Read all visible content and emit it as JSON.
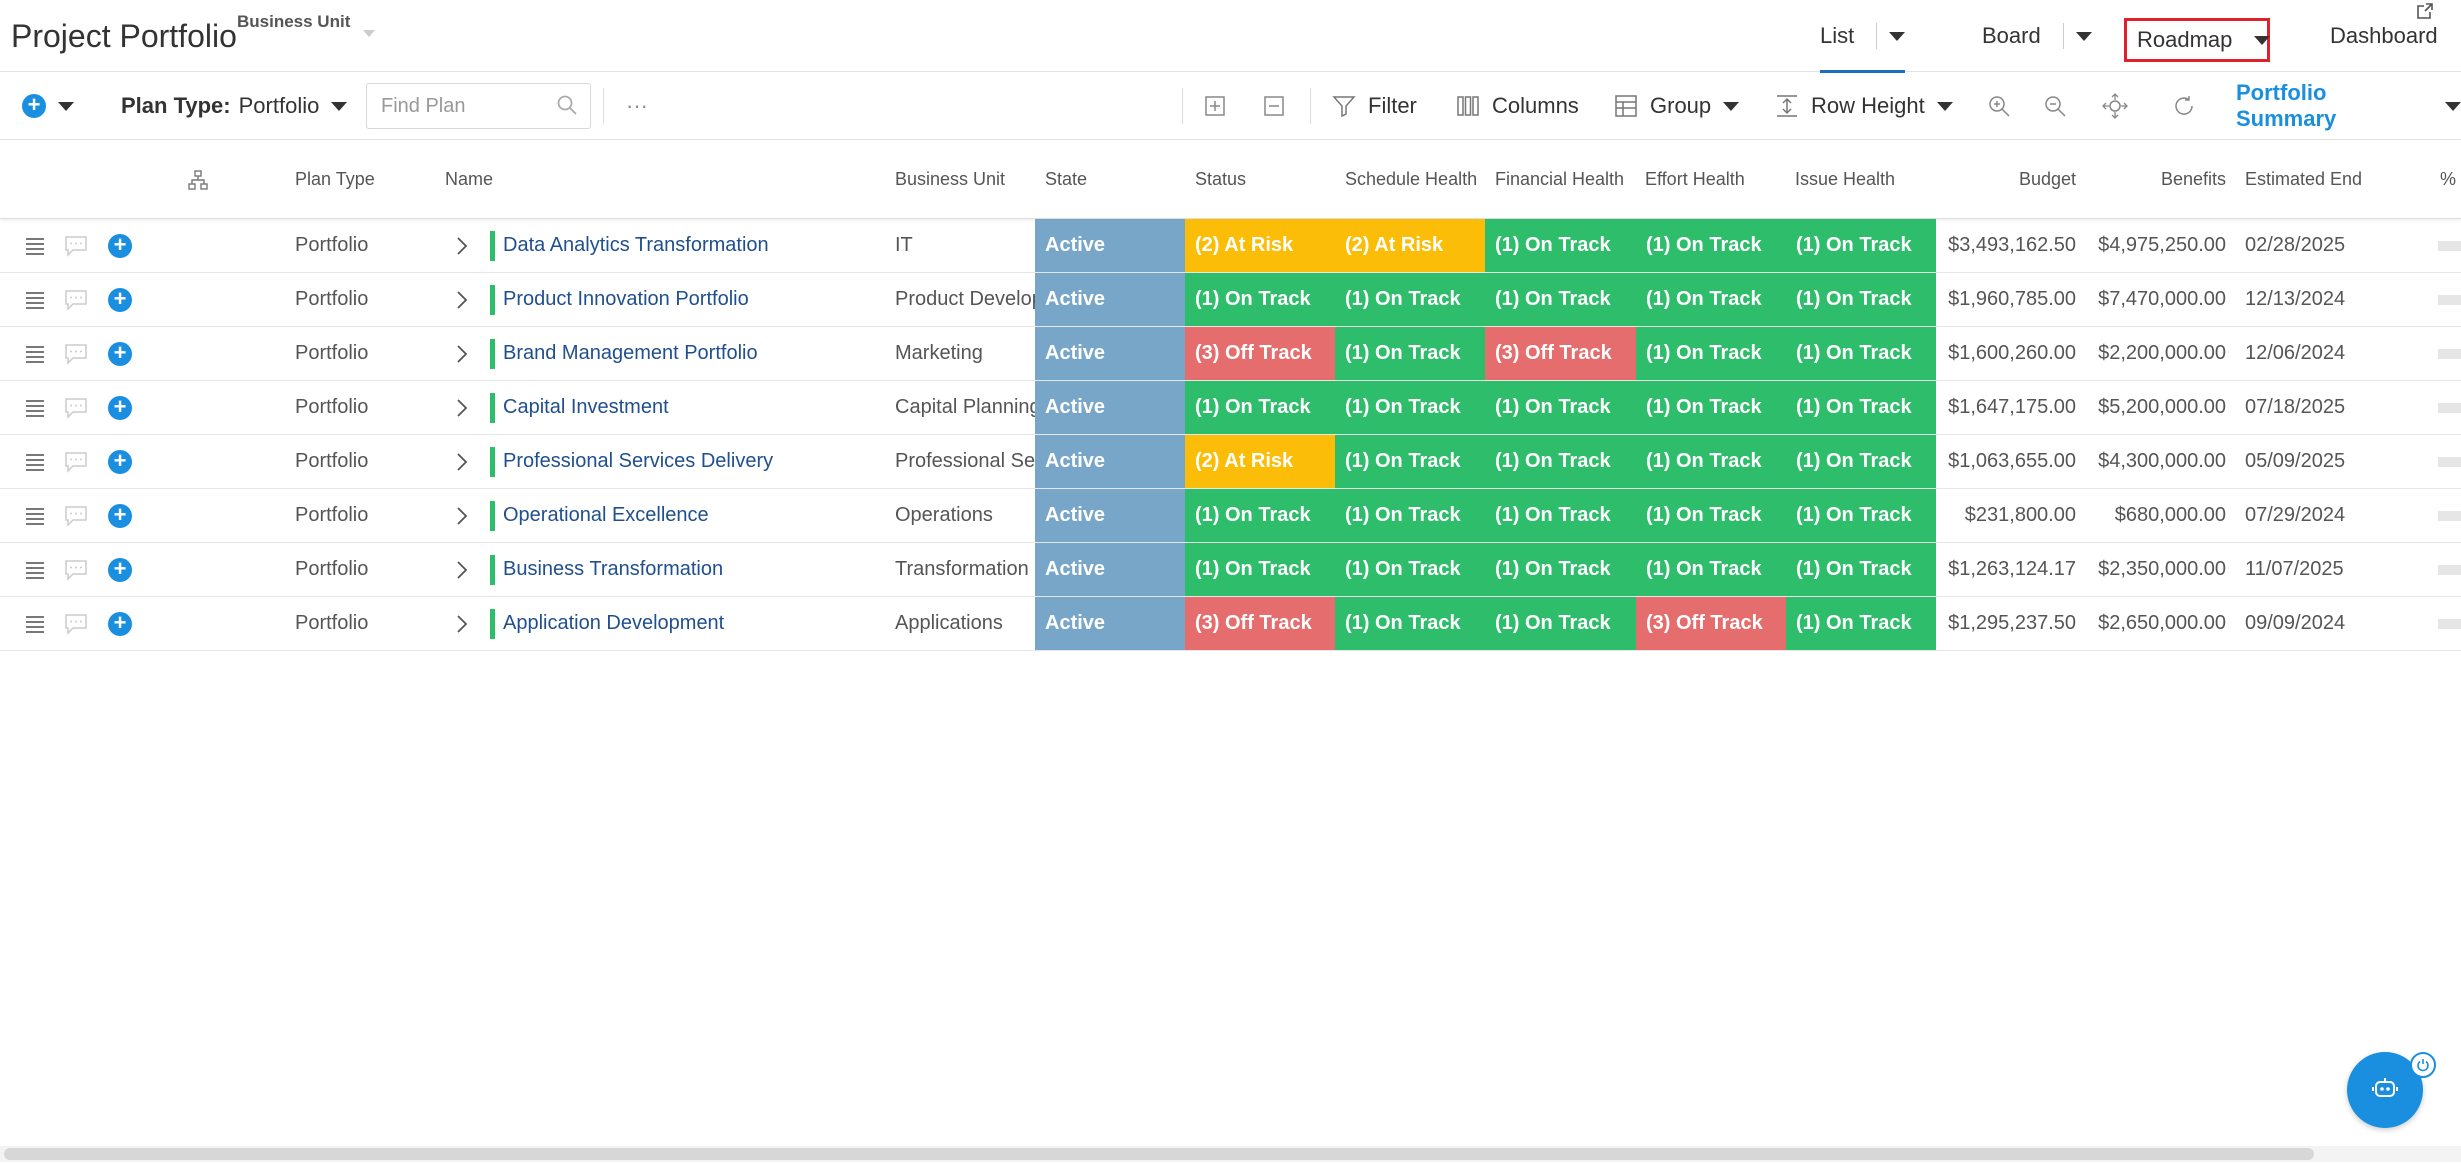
{
  "header": {
    "title": "Project Portfolio",
    "business_unit_label": "Business Unit",
    "views": {
      "list": "List",
      "board": "Board",
      "roadmap": "Roadmap",
      "dashboard": "Dashboard"
    },
    "active_view": "List",
    "highlighted_view": "Roadmap"
  },
  "toolbar": {
    "plan_type_label": "Plan Type:",
    "plan_type_value": "Portfolio",
    "find_placeholder": "Find Plan",
    "more": "···",
    "filter": "Filter",
    "columns": "Columns",
    "group": "Group",
    "row_height": "Row Height",
    "portfolio_summary": "Portfolio Summary"
  },
  "columns": {
    "plan_type": "Plan Type",
    "name": "Name",
    "business_unit": "Business Unit",
    "state": "State",
    "status": "Status",
    "schedule_health": "Schedule Health",
    "financial_health": "Financial Health",
    "effort_health": "Effort Health",
    "issue_health": "Issue Health",
    "budget": "Budget",
    "benefits": "Benefits",
    "estimated_end": "Estimated End",
    "percent": "%"
  },
  "colors": {
    "active": "#78a6c9",
    "on_track": "#2ebd6b",
    "at_risk": "#fbbd08",
    "off_track": "#e56d6d",
    "accent": "#1a8fe0",
    "highlight_border": "#e0202a"
  },
  "rows": [
    {
      "plan_type": "Portfolio",
      "name": "Data Analytics Transformation",
      "business_unit": "IT",
      "state": "Active",
      "status": "(2) At Risk",
      "schedule_health": "(2) At Risk",
      "financial_health": "(1) On Track",
      "effort_health": "(1) On Track",
      "issue_health": "(1) On Track",
      "budget": "$3,493,162.50",
      "benefits": "$4,975,250.00",
      "estimated_end": "02/28/2025"
    },
    {
      "plan_type": "Portfolio",
      "name": "Product Innovation Portfolio",
      "business_unit": "Product Develop",
      "state": "Active",
      "status": "(1) On Track",
      "schedule_health": "(1) On Track",
      "financial_health": "(1) On Track",
      "effort_health": "(1) On Track",
      "issue_health": "(1) On Track",
      "budget": "$1,960,785.00",
      "benefits": "$7,470,000.00",
      "estimated_end": "12/13/2024"
    },
    {
      "plan_type": "Portfolio",
      "name": "Brand Management Portfolio",
      "business_unit": "Marketing",
      "state": "Active",
      "status": "(3) Off Track",
      "schedule_health": "(1) On Track",
      "financial_health": "(3) Off Track",
      "effort_health": "(1) On Track",
      "issue_health": "(1) On Track",
      "budget": "$1,600,260.00",
      "benefits": "$2,200,000.00",
      "estimated_end": "12/06/2024"
    },
    {
      "plan_type": "Portfolio",
      "name": "Capital Investment",
      "business_unit": "Capital Planning",
      "state": "Active",
      "status": "(1) On Track",
      "schedule_health": "(1) On Track",
      "financial_health": "(1) On Track",
      "effort_health": "(1) On Track",
      "issue_health": "(1) On Track",
      "budget": "$1,647,175.00",
      "benefits": "$5,200,000.00",
      "estimated_end": "07/18/2025"
    },
    {
      "plan_type": "Portfolio",
      "name": "Professional Services Delivery",
      "business_unit": "Professional Ser",
      "state": "Active",
      "status": "(2) At Risk",
      "schedule_health": "(1) On Track",
      "financial_health": "(1) On Track",
      "effort_health": "(1) On Track",
      "issue_health": "(1) On Track",
      "budget": "$1,063,655.00",
      "benefits": "$4,300,000.00",
      "estimated_end": "05/09/2025"
    },
    {
      "plan_type": "Portfolio",
      "name": "Operational Excellence",
      "business_unit": "Operations",
      "state": "Active",
      "status": "(1) On Track",
      "schedule_health": "(1) On Track",
      "financial_health": "(1) On Track",
      "effort_health": "(1) On Track",
      "issue_health": "(1) On Track",
      "budget": "$231,800.00",
      "benefits": "$680,000.00",
      "estimated_end": "07/29/2024"
    },
    {
      "plan_type": "Portfolio",
      "name": "Business Transformation",
      "business_unit": "Transformation",
      "state": "Active",
      "status": "(1) On Track",
      "schedule_health": "(1) On Track",
      "financial_health": "(1) On Track",
      "effort_health": "(1) On Track",
      "issue_health": "(1) On Track",
      "budget": "$1,263,124.17",
      "benefits": "$2,350,000.00",
      "estimated_end": "11/07/2025"
    },
    {
      "plan_type": "Portfolio",
      "name": "Application Development",
      "business_unit": "Applications",
      "state": "Active",
      "status": "(3) Off Track",
      "schedule_health": "(1) On Track",
      "financial_health": "(1) On Track",
      "effort_health": "(3) Off Track",
      "issue_health": "(1) On Track",
      "budget": "$1,295,237.50",
      "benefits": "$2,650,000.00",
      "estimated_end": "09/09/2024"
    }
  ]
}
